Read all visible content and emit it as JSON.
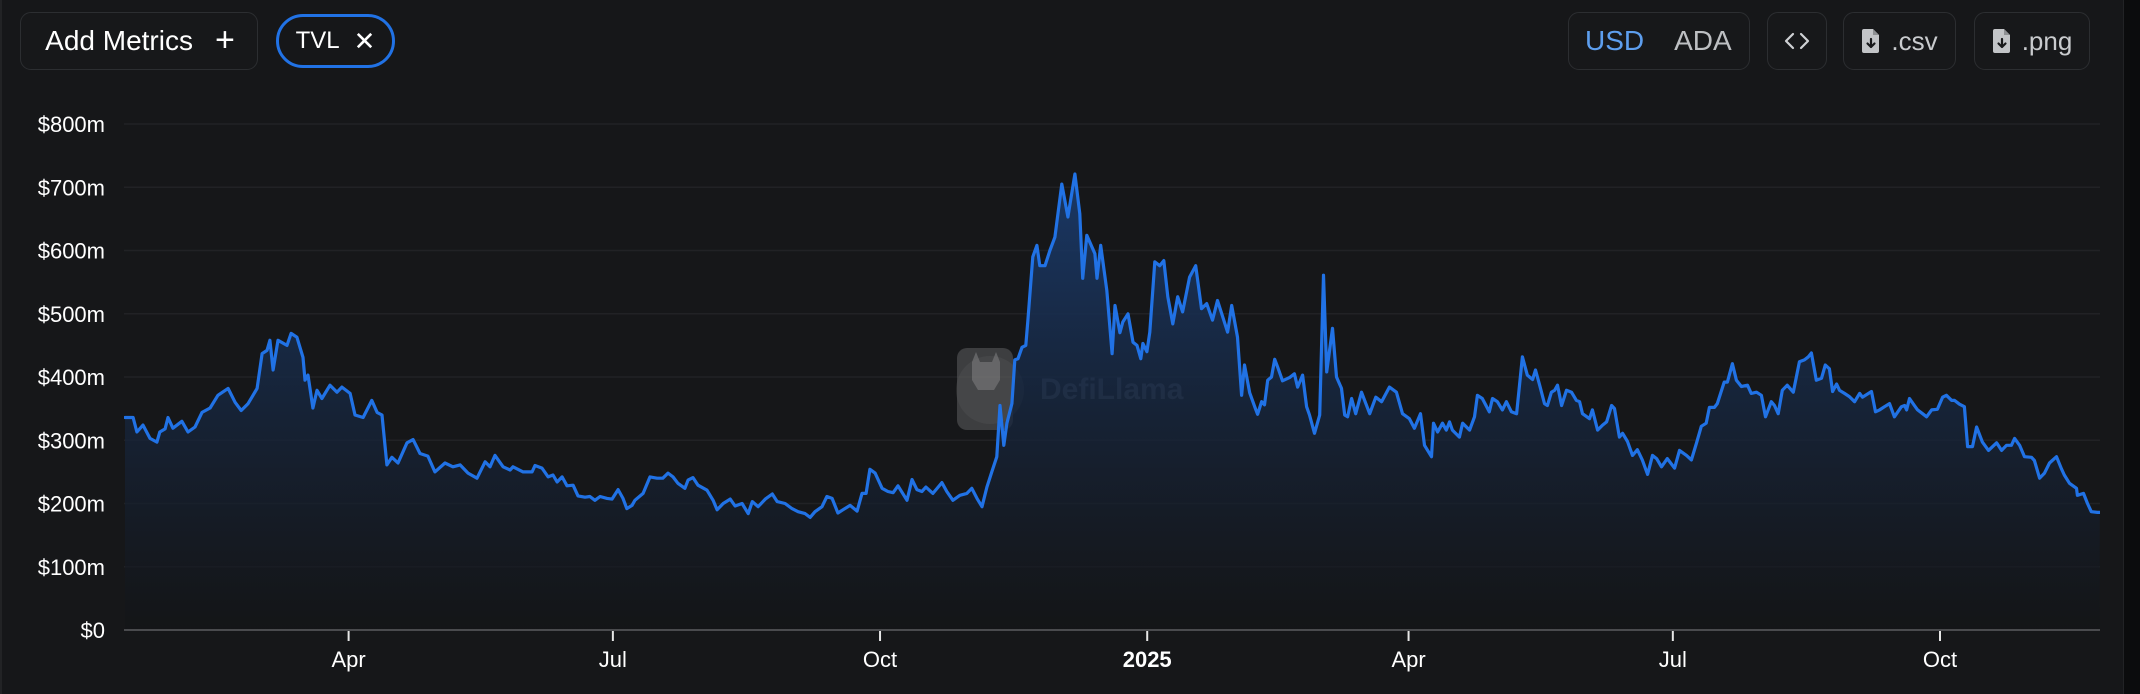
{
  "toolbar": {
    "add_metrics_label": "Add Metrics",
    "add_metrics_icon": "+",
    "active_metric": {
      "label": "TVL",
      "remove_icon": "✕"
    },
    "currency": {
      "options": [
        "USD",
        "ADA"
      ],
      "selected": "USD"
    },
    "embed_icon": "‹›",
    "csv_label": ".csv",
    "png_label": ".png"
  },
  "watermark": {
    "text": "DefiLlama"
  },
  "colors": {
    "line": "#2172e5",
    "fill_top": "#1a3a6b",
    "fill_bottom": "#131416",
    "grid": "#212225",
    "axis": "#4a4b4e",
    "text": "#ffffff"
  },
  "chart_data": {
    "type": "area",
    "title": "",
    "series": [
      {
        "name": "TVL",
        "unit": "USD"
      }
    ],
    "xlabel": "",
    "ylabel": "",
    "ylim": [
      0,
      800
    ],
    "y_unit": "millions USD",
    "y_ticks": [
      "$0",
      "$100m",
      "$200m",
      "$300m",
      "$400m",
      "$500m",
      "$600m",
      "$700m",
      "$800m"
    ],
    "y_tick_values": [
      0,
      100,
      200,
      300,
      400,
      500,
      600,
      700,
      800
    ],
    "x_start_date": "2024-01-15",
    "x_end_day": 680,
    "x_ticks": [
      {
        "day": 77,
        "label": "Apr",
        "bold": false
      },
      {
        "day": 168,
        "label": "Jul",
        "bold": false
      },
      {
        "day": 260,
        "label": "Oct",
        "bold": false
      },
      {
        "day": 352,
        "label": "2025",
        "bold": true
      },
      {
        "day": 442,
        "label": "Apr",
        "bold": false
      },
      {
        "day": 533,
        "label": "Jul",
        "bold": false
      },
      {
        "day": 625,
        "label": "Oct",
        "bold": false
      }
    ],
    "grid": true,
    "legend": "none",
    "points_format": "[day_offset_from_x_start_date, tvl_in_$m]",
    "points": [
      [
        0,
        336
      ],
      [
        2.8,
        336
      ],
      [
        4.1,
        313
      ],
      [
        6.2,
        324
      ],
      [
        8.6,
        303
      ],
      [
        11,
        297
      ],
      [
        12,
        313
      ],
      [
        13.8,
        318
      ],
      [
        14.8,
        336
      ],
      [
        16.5,
        319
      ],
      [
        19.6,
        330
      ],
      [
        21.7,
        313
      ],
      [
        24.1,
        321
      ],
      [
        26.5,
        344
      ],
      [
        29.3,
        351
      ],
      [
        32,
        371
      ],
      [
        35.5,
        382
      ],
      [
        37.9,
        360
      ],
      [
        40,
        347
      ],
      [
        42.4,
        358
      ],
      [
        43.7,
        368
      ],
      [
        45.5,
        382
      ],
      [
        47.2,
        437
      ],
      [
        48.9,
        442
      ],
      [
        49.9,
        458
      ],
      [
        51,
        411
      ],
      [
        52.7,
        458
      ],
      [
        55.8,
        450
      ],
      [
        57.2,
        469
      ],
      [
        59.2,
        463
      ],
      [
        61.3,
        431
      ],
      [
        62,
        395
      ],
      [
        63,
        403
      ],
      [
        64.7,
        351
      ],
      [
        66.1,
        379
      ],
      [
        67.8,
        366
      ],
      [
        70.6,
        387
      ],
      [
        73,
        376
      ],
      [
        74.7,
        384
      ],
      [
        77.5,
        374
      ],
      [
        79.2,
        340
      ],
      [
        82,
        336
      ],
      [
        85,
        363
      ],
      [
        86.8,
        344
      ],
      [
        88.5,
        340
      ],
      [
        90.2,
        261
      ],
      [
        91.9,
        273
      ],
      [
        94,
        264
      ],
      [
        97.1,
        296
      ],
      [
        99.2,
        301
      ],
      [
        101.6,
        279
      ],
      [
        104.3,
        275
      ],
      [
        106.7,
        250
      ],
      [
        110.2,
        264
      ],
      [
        112.9,
        258
      ],
      [
        115.4,
        261
      ],
      [
        118.1,
        248
      ],
      [
        121.2,
        240
      ],
      [
        124,
        266
      ],
      [
        125.7,
        258
      ],
      [
        127.4,
        276
      ],
      [
        130.2,
        258
      ],
      [
        132.6,
        253
      ],
      [
        133.6,
        258
      ],
      [
        137.1,
        250
      ],
      [
        140.2,
        250
      ],
      [
        141.2,
        260
      ],
      [
        143.6,
        256
      ],
      [
        145.7,
        242
      ],
      [
        147.4,
        245
      ],
      [
        148.8,
        234
      ],
      [
        150.5,
        242
      ],
      [
        152.2,
        228
      ],
      [
        154.3,
        229
      ],
      [
        156,
        212
      ],
      [
        158.4,
        210
      ],
      [
        160.1,
        211
      ],
      [
        161.8,
        205
      ],
      [
        163.6,
        211
      ],
      [
        166,
        208
      ],
      [
        167.7,
        207
      ],
      [
        169.8,
        222
      ],
      [
        171.5,
        208
      ],
      [
        172.8,
        192
      ],
      [
        174.6,
        197
      ],
      [
        175.6,
        205
      ],
      [
        178.4,
        216
      ],
      [
        180.8,
        242
      ],
      [
        183.2,
        240
      ],
      [
        185.2,
        240
      ],
      [
        187,
        248
      ],
      [
        188.7,
        242
      ],
      [
        190.4,
        232
      ],
      [
        192.8,
        224
      ],
      [
        193.9,
        237
      ],
      [
        195.6,
        241
      ],
      [
        197.3,
        229
      ],
      [
        200.4,
        221
      ],
      [
        202.5,
        205
      ],
      [
        203.9,
        190
      ],
      [
        206,
        200
      ],
      [
        208.4,
        207
      ],
      [
        210.1,
        196
      ],
      [
        212.5,
        200
      ],
      [
        214.6,
        184
      ],
      [
        216,
        203
      ],
      [
        218,
        195
      ],
      [
        220.5,
        207
      ],
      [
        222.9,
        215
      ],
      [
        224.6,
        203
      ],
      [
        227.3,
        200
      ],
      [
        229.7,
        192
      ],
      [
        231.8,
        187
      ],
      [
        234.2,
        184
      ],
      [
        235.9,
        178
      ],
      [
        237.6,
        187
      ],
      [
        240,
        195
      ],
      [
        241.7,
        211
      ],
      [
        243.5,
        208
      ],
      [
        245.5,
        185
      ],
      [
        247.2,
        190
      ],
      [
        249.7,
        197
      ],
      [
        252.1,
        188
      ],
      [
        253.8,
        216
      ],
      [
        255.2,
        216
      ],
      [
        256.5,
        254
      ],
      [
        258.3,
        248
      ],
      [
        260.7,
        224
      ],
      [
        262.7,
        219
      ],
      [
        264.5,
        217
      ],
      [
        266.2,
        228
      ],
      [
        269.3,
        205
      ],
      [
        271,
        238
      ],
      [
        272.7,
        222
      ],
      [
        274.4,
        219
      ],
      [
        275.8,
        226
      ],
      [
        278.2,
        216
      ],
      [
        281.3,
        233
      ],
      [
        283,
        219
      ],
      [
        285.1,
        205
      ],
      [
        287.5,
        213
      ],
      [
        289.9,
        216
      ],
      [
        291.6,
        224
      ],
      [
        293.4,
        208
      ],
      [
        295.1,
        195
      ],
      [
        296.8,
        226
      ],
      [
        298.5,
        250
      ],
      [
        300.2,
        274
      ],
      [
        301.3,
        355
      ],
      [
        302.6,
        292
      ],
      [
        303.7,
        327
      ],
      [
        305.4,
        358
      ],
      [
        306.4,
        427
      ],
      [
        307.5,
        429
      ],
      [
        308.9,
        447
      ],
      [
        310.2,
        450
      ],
      [
        310.9,
        490
      ],
      [
        312.6,
        590
      ],
      [
        314,
        608
      ],
      [
        315,
        576
      ],
      [
        316.8,
        576
      ],
      [
        318.5,
        600
      ],
      [
        320.2,
        621
      ],
      [
        322.6,
        705
      ],
      [
        324.7,
        653
      ],
      [
        327.1,
        721
      ],
      [
        328.8,
        658
      ],
      [
        329.8,
        556
      ],
      [
        331.2,
        624
      ],
      [
        334,
        595
      ],
      [
        334.7,
        556
      ],
      [
        336,
        608
      ],
      [
        338.1,
        537
      ],
      [
        339.9,
        437
      ],
      [
        340.9,
        513
      ],
      [
        342.6,
        470
      ],
      [
        343.6,
        487
      ],
      [
        345.4,
        500
      ],
      [
        347.1,
        455
      ],
      [
        348.5,
        450
      ],
      [
        349.8,
        429
      ],
      [
        350.5,
        453
      ],
      [
        351.9,
        440
      ],
      [
        352.9,
        471
      ],
      [
        354.6,
        582
      ],
      [
        356.3,
        576
      ],
      [
        357.7,
        584
      ],
      [
        359.1,
        527
      ],
      [
        360.8,
        484
      ],
      [
        362.5,
        527
      ],
      [
        364.2,
        503
      ],
      [
        366.6,
        558
      ],
      [
        368.7,
        576
      ],
      [
        370.7,
        508
      ],
      [
        372.5,
        516
      ],
      [
        374.5,
        490
      ],
      [
        376.2,
        521
      ],
      [
        379.7,
        471
      ],
      [
        381.1,
        513
      ],
      [
        383.1,
        463
      ],
      [
        384.5,
        371
      ],
      [
        385.5,
        419
      ],
      [
        387.3,
        375
      ],
      [
        389,
        353
      ],
      [
        390,
        341
      ],
      [
        391.4,
        361
      ],
      [
        392.4,
        356
      ],
      [
        393.5,
        395
      ],
      [
        394.8,
        400
      ],
      [
        395.9,
        428
      ],
      [
        396.9,
        416
      ],
      [
        398.6,
        394
      ],
      [
        401,
        399
      ],
      [
        402.7,
        405
      ],
      [
        403.8,
        384
      ],
      [
        405.5,
        403
      ],
      [
        406.9,
        353
      ],
      [
        407.9,
        340
      ],
      [
        409.6,
        311
      ],
      [
        411.4,
        340
      ],
      [
        412.7,
        561
      ],
      [
        413.8,
        408
      ],
      [
        415.8,
        477
      ],
      [
        417.2,
        400
      ],
      [
        418.9,
        382
      ],
      [
        420,
        340
      ],
      [
        421,
        337
      ],
      [
        422.4,
        366
      ],
      [
        423.8,
        342
      ],
      [
        425.8,
        376
      ],
      [
        428.6,
        342
      ],
      [
        430.7,
        368
      ],
      [
        432.7,
        361
      ],
      [
        435.4,
        384
      ],
      [
        437.8,
        376
      ],
      [
        439.9,
        342
      ],
      [
        442.3,
        334
      ],
      [
        444,
        319
      ],
      [
        446.1,
        342
      ],
      [
        447.5,
        292
      ],
      [
        449.9,
        274
      ],
      [
        450.6,
        327
      ],
      [
        452,
        313
      ],
      [
        453.7,
        327
      ],
      [
        455,
        316
      ],
      [
        456.1,
        329
      ],
      [
        457.1,
        316
      ],
      [
        459.5,
        305
      ],
      [
        460.6,
        327
      ],
      [
        463,
        316
      ],
      [
        464.7,
        337
      ],
      [
        465.7,
        371
      ],
      [
        467.4,
        366
      ],
      [
        469.8,
        345
      ],
      [
        470.9,
        366
      ],
      [
        472.6,
        361
      ],
      [
        474.3,
        348
      ],
      [
        475.7,
        361
      ],
      [
        477.4,
        345
      ],
      [
        479.2,
        342
      ],
      [
        481.2,
        432
      ],
      [
        482.9,
        403
      ],
      [
        484.7,
        396
      ],
      [
        485.7,
        411
      ],
      [
        487.1,
        388
      ],
      [
        488.8,
        358
      ],
      [
        489.8,
        355
      ],
      [
        491.2,
        376
      ],
      [
        492.3,
        379
      ],
      [
        493.3,
        387
      ],
      [
        494.7,
        355
      ],
      [
        496.4,
        379
      ],
      [
        498.1,
        376
      ],
      [
        499.8,
        363
      ],
      [
        500.9,
        361
      ],
      [
        501.9,
        342
      ],
      [
        504.3,
        334
      ],
      [
        505.3,
        348
      ],
      [
        507.1,
        316
      ],
      [
        508.8,
        324
      ],
      [
        510.2,
        329
      ],
      [
        511.9,
        355
      ],
      [
        512.9,
        350
      ],
      [
        514.6,
        305
      ],
      [
        515.7,
        311
      ],
      [
        517.4,
        298
      ],
      [
        519.1,
        276
      ],
      [
        520.8,
        285
      ],
      [
        522.5,
        269
      ],
      [
        524.3,
        246
      ],
      [
        526,
        276
      ],
      [
        527.4,
        271
      ],
      [
        529.1,
        258
      ],
      [
        531.1,
        271
      ],
      [
        533.6,
        256
      ],
      [
        535.3,
        284
      ],
      [
        537.7,
        276
      ],
      [
        539.4,
        269
      ],
      [
        541.1,
        295
      ],
      [
        542.8,
        322
      ],
      [
        544.5,
        327
      ],
      [
        545.6,
        352
      ],
      [
        547.3,
        352
      ],
      [
        548.3,
        358
      ],
      [
        550.7,
        392
      ],
      [
        551.8,
        392
      ],
      [
        553.5,
        421
      ],
      [
        554.9,
        395
      ],
      [
        556.6,
        385
      ],
      [
        558.7,
        387
      ],
      [
        560,
        374
      ],
      [
        561.8,
        376
      ],
      [
        563.5,
        371
      ],
      [
        564.9,
        337
      ],
      [
        566.9,
        361
      ],
      [
        568,
        355
      ],
      [
        569.3,
        342
      ],
      [
        570.7,
        379
      ],
      [
        572.4,
        387
      ],
      [
        574.5,
        376
      ],
      [
        576.6,
        424
      ],
      [
        578.3,
        427
      ],
      [
        579.7,
        432
      ],
      [
        580.7,
        438
      ],
      [
        582.4,
        395
      ],
      [
        584.2,
        398
      ],
      [
        585.5,
        419
      ],
      [
        586.9,
        413
      ],
      [
        588,
        377
      ],
      [
        589.4,
        389
      ],
      [
        590.4,
        379
      ],
      [
        592.1,
        374
      ],
      [
        593.8,
        369
      ],
      [
        595.6,
        361
      ],
      [
        597.3,
        374
      ],
      [
        598.3,
        368
      ],
      [
        601.4,
        377
      ],
      [
        602.8,
        345
      ],
      [
        604.2,
        348
      ],
      [
        605.9,
        353
      ],
      [
        607.6,
        358
      ],
      [
        609.3,
        337
      ],
      [
        611.7,
        353
      ],
      [
        612.8,
        355
      ],
      [
        613.5,
        348
      ],
      [
        614.5,
        366
      ],
      [
        616.2,
        355
      ],
      [
        617.3,
        348
      ],
      [
        619,
        342
      ],
      [
        620.4,
        337
      ],
      [
        622.1,
        348
      ],
      [
        624.1,
        349
      ],
      [
        625.9,
        368
      ],
      [
        627.2,
        371
      ],
      [
        629,
        363
      ],
      [
        630,
        363
      ],
      [
        631.7,
        357
      ],
      [
        633.4,
        353
      ],
      [
        634.5,
        290
      ],
      [
        636.2,
        290
      ],
      [
        637.6,
        321
      ],
      [
        639.6,
        297
      ],
      [
        641.7,
        284
      ],
      [
        644.5,
        296
      ],
      [
        646.2,
        284
      ],
      [
        647.9,
        292
      ],
      [
        649.6,
        292
      ],
      [
        650.7,
        303
      ],
      [
        652.4,
        292
      ],
      [
        654.1,
        274
      ],
      [
        656.5,
        273
      ],
      [
        657.5,
        268
      ],
      [
        659.3,
        240
      ],
      [
        661,
        248
      ],
      [
        662.7,
        264
      ],
      [
        665.1,
        274
      ],
      [
        666.8,
        255
      ],
      [
        667.8,
        245
      ],
      [
        669.6,
        232
      ],
      [
        672,
        224
      ],
      [
        672.3,
        213
      ],
      [
        674.4,
        216
      ],
      [
        675.8,
        200
      ],
      [
        677.1,
        187
      ],
      [
        679.2,
        186
      ],
      [
        680,
        186
      ]
    ]
  }
}
